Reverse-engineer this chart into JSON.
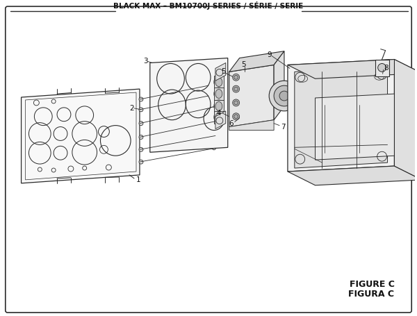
{
  "title": "BLACK MAX – BM10700J SERIES / SÉRIE / SERIE",
  "figure_label": "FIGURE C",
  "figure_label2": "FIGURA C",
  "bg_color": "#ffffff",
  "line_color": "#2a2a2a",
  "text_color": "#111111",
  "title_fontsize": 7.5,
  "fig_label_fontsize": 9
}
